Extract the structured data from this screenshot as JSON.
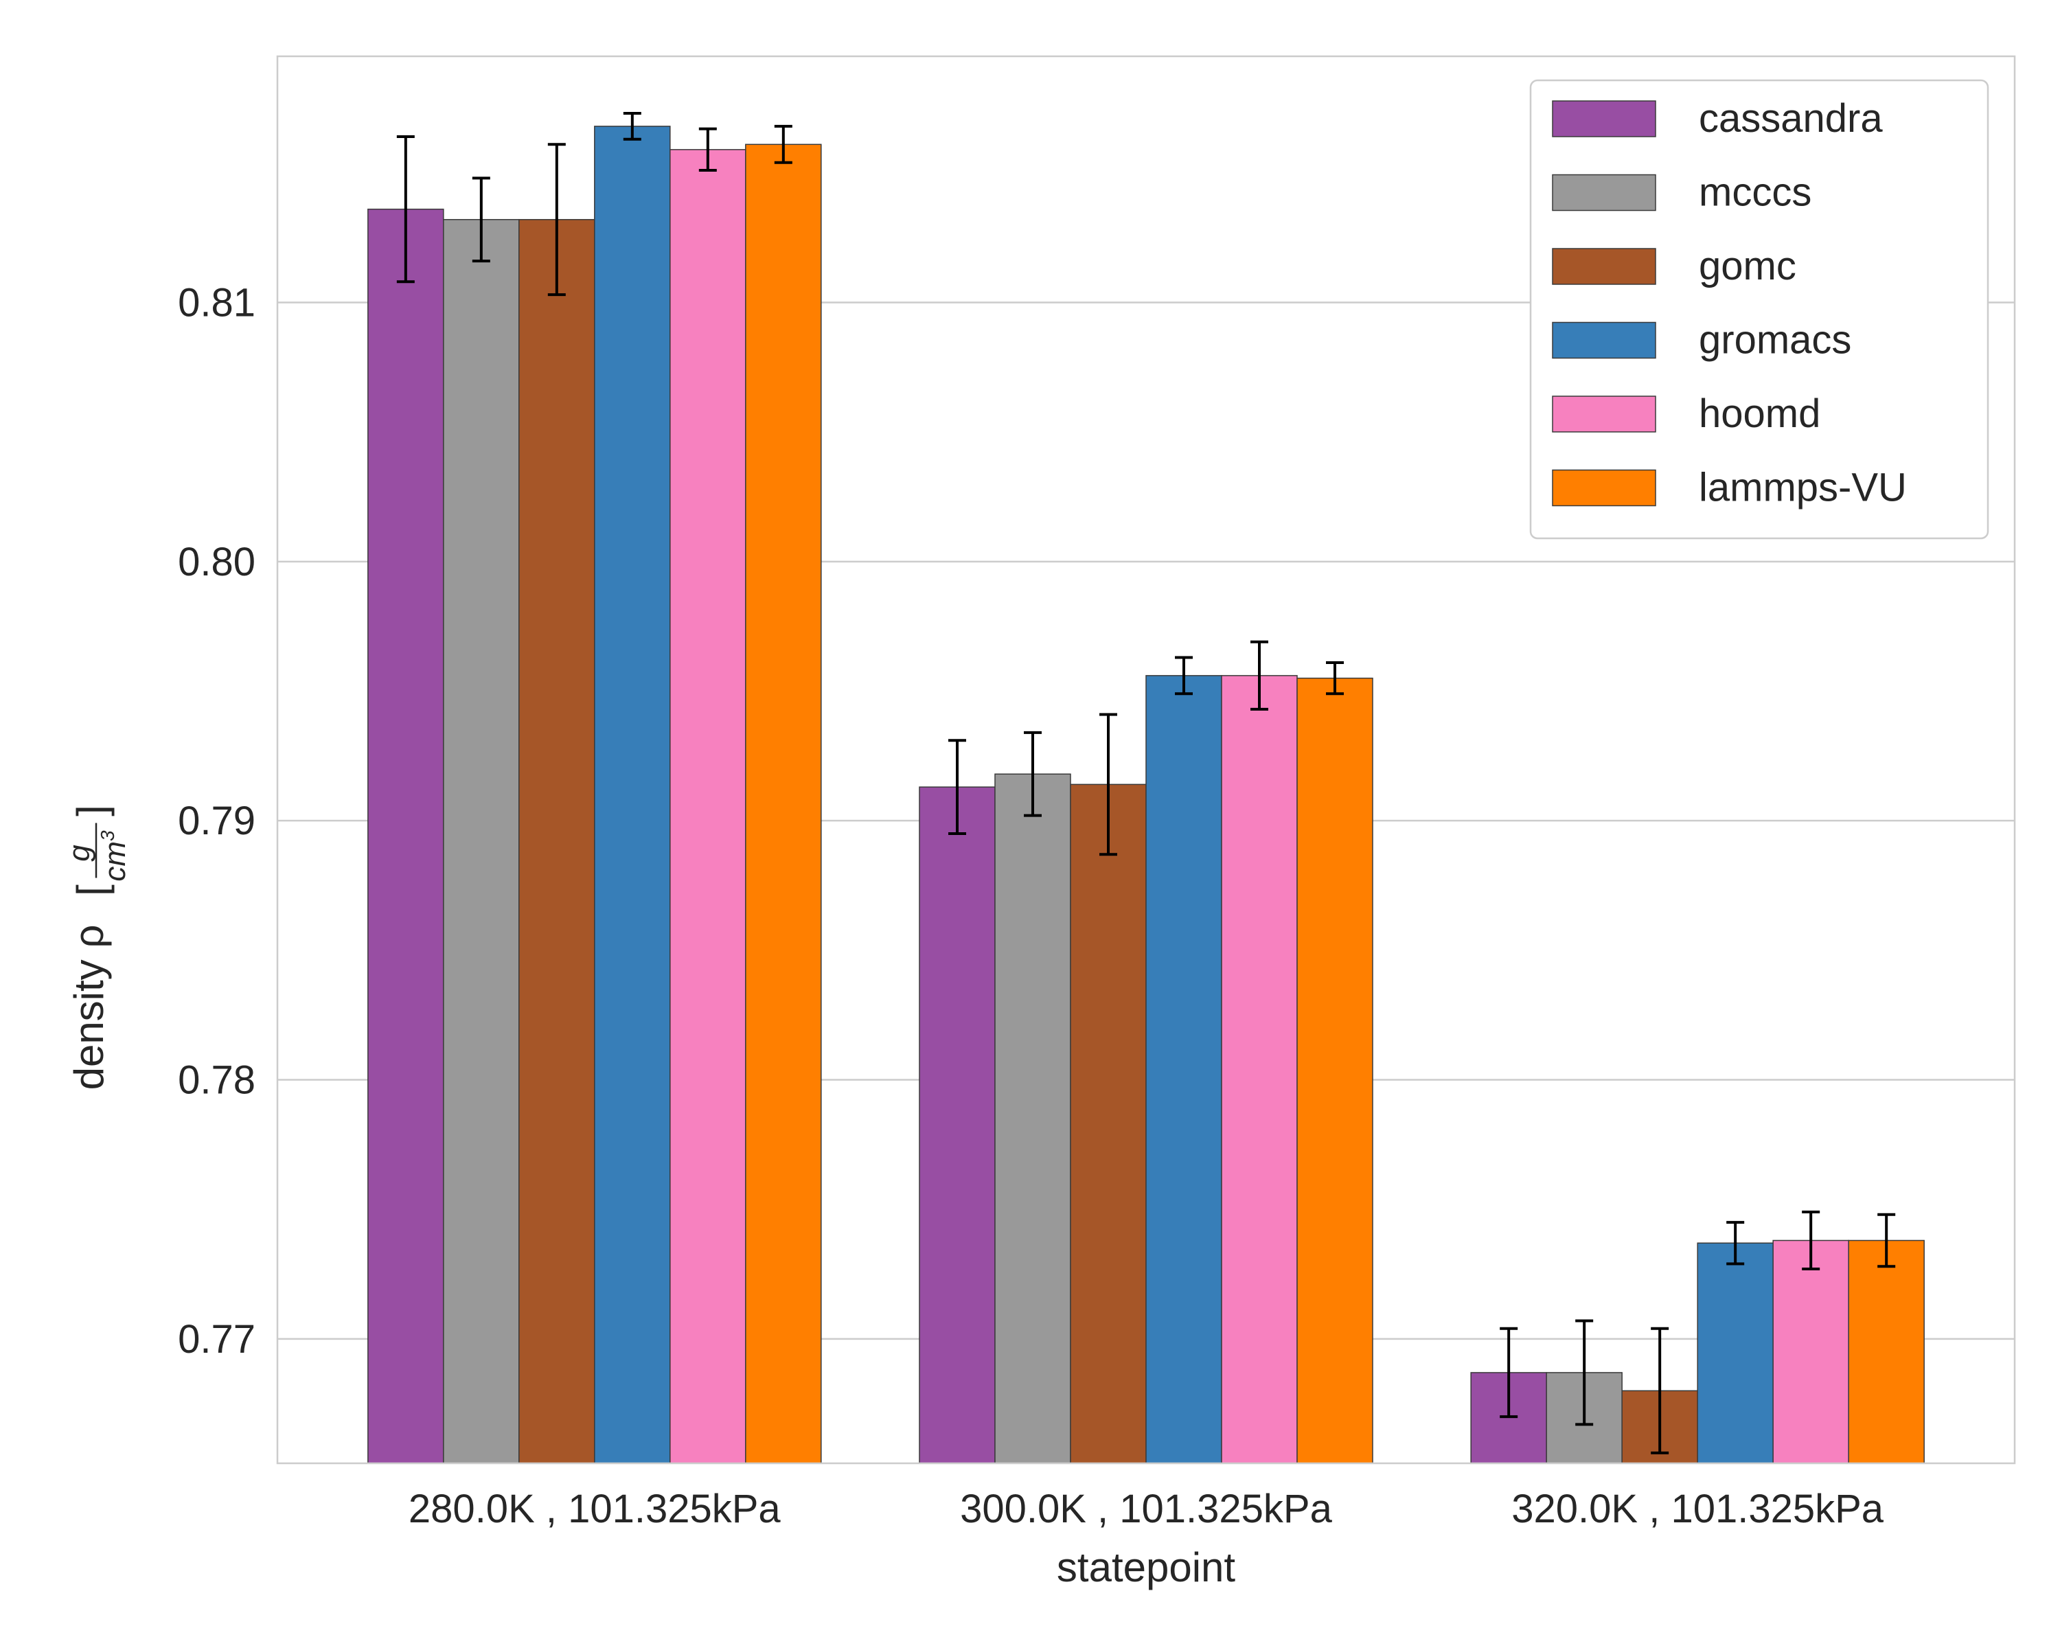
{
  "chart_data": {
    "type": "bar",
    "title": "",
    "xlabel": "statepoint",
    "ylabel": {
      "prefix": "density ρ",
      "numerator": "g",
      "denominator_base": "cm",
      "denominator_exp": "3"
    },
    "ylim": [
      0.7652,
      0.8195
    ],
    "yticks": [
      0.77,
      0.78,
      0.79,
      0.8,
      0.81
    ],
    "ytick_labels": [
      "0.77",
      "0.78",
      "0.79",
      "0.80",
      "0.81"
    ],
    "categories": [
      "280.0K , 101.325kPa",
      "300.0K , 101.325kPa",
      "320.0K , 101.325kPa"
    ],
    "grid": "horizontal",
    "legend_position": "top-right",
    "series": [
      {
        "name": "cassandra",
        "color": "#984ea3",
        "values": [
          0.8136,
          0.7913,
          0.7687
        ],
        "errors": [
          0.0028,
          0.0018,
          0.0017
        ]
      },
      {
        "name": "mcccs",
        "color": "#999999",
        "values": [
          0.8132,
          0.7918,
          0.7687
        ],
        "errors": [
          0.0016,
          0.0016,
          0.002
        ]
      },
      {
        "name": "gomc",
        "color": "#a65628",
        "values": [
          0.8132,
          0.7914,
          0.768
        ],
        "errors": [
          0.0029,
          0.0027,
          0.0024
        ]
      },
      {
        "name": "gromacs",
        "color": "#377eb8",
        "values": [
          0.8168,
          0.7956,
          0.7737
        ],
        "errors": [
          0.0005,
          0.0007,
          0.0008
        ]
      },
      {
        "name": "hoomd",
        "color": "#f781bf",
        "values": [
          0.8159,
          0.7956,
          0.7738
        ],
        "errors": [
          0.0008,
          0.0013,
          0.0011
        ]
      },
      {
        "name": "lammps-VU",
        "color": "#ff7f00",
        "values": [
          0.8161,
          0.7955,
          0.7738
        ],
        "errors": [
          0.0007,
          0.0006,
          0.001
        ]
      }
    ]
  }
}
